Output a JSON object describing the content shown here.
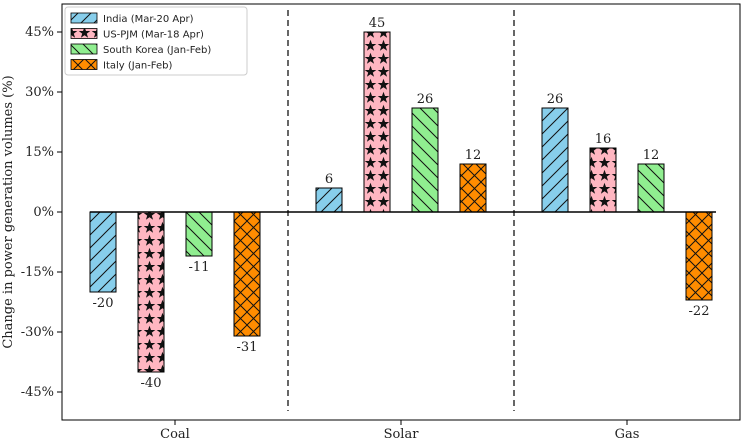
{
  "chart_data": {
    "type": "bar",
    "ylabel": "Change in power generation volumes (%)",
    "ylim": [
      -52,
      52
    ],
    "yticks": [
      -45,
      -30,
      -15,
      0,
      15,
      30,
      45
    ],
    "ytick_labels": [
      "-45%",
      "-30%",
      "-15%",
      "0%",
      "15%",
      "30%",
      "45%"
    ],
    "categories": [
      "Coal",
      "Solar",
      "Gas"
    ],
    "series": [
      {
        "name": "India (Mar-20 Apr)",
        "values": [
          -20,
          6,
          26
        ],
        "color": "#87ceeb",
        "hatch": "diagonal"
      },
      {
        "name": "US-PJM (Mar-18 Apr)",
        "values": [
          -40,
          45,
          16
        ],
        "color": "#ffb6c1",
        "hatch": "stars"
      },
      {
        "name": "South Korea (Jan-Feb)",
        "values": [
          -11,
          26,
          12
        ],
        "color": "#90ee90",
        "hatch": "backslash"
      },
      {
        "name": "Italy (Jan-Feb)",
        "values": [
          -31,
          12,
          -22
        ],
        "color": "#ff8c00",
        "hatch": "crosshatch"
      }
    ],
    "data_labels": [
      [
        "-20",
        "6",
        "26"
      ],
      [
        "-40",
        "45",
        "16"
      ],
      [
        "-11",
        "26",
        "12"
      ],
      [
        "-31",
        "12",
        "-22"
      ]
    ],
    "group_separators": "dashed vertical lines between categories",
    "legend_position": "top-left",
    "grid": false
  }
}
